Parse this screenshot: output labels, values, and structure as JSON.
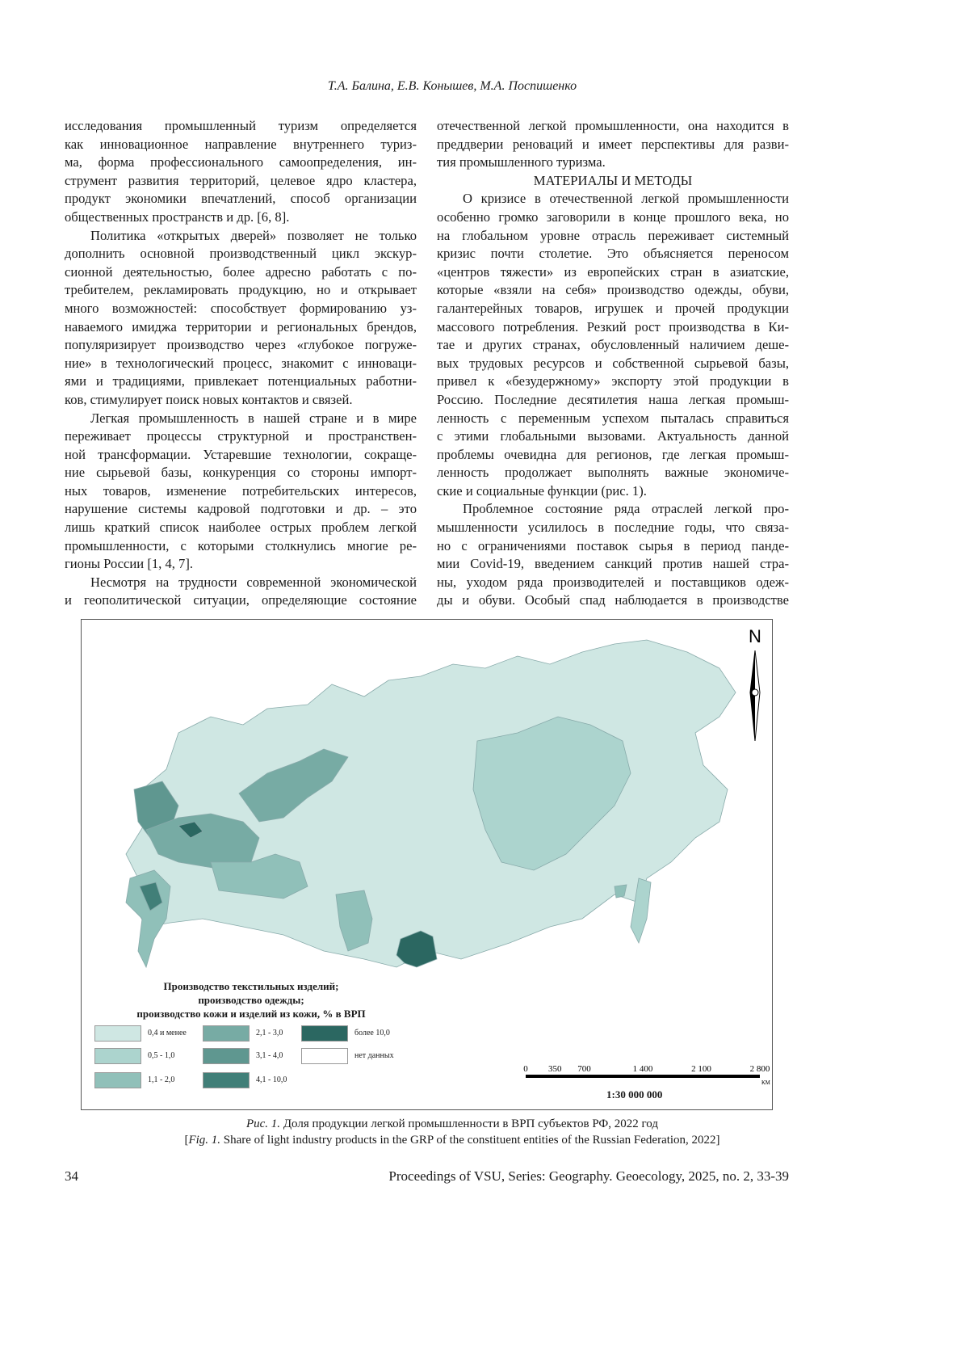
{
  "header": "Т.А. Балина, Е.В. Конышев, М.А. Поспишенко",
  "left_column": [
    {
      "t": "исследования промышленный туризм определяется"
    },
    {
      "t": "как инновационное направление внутреннего туриз-"
    },
    {
      "t": "ма, форма профессионального самоопределения, ин-"
    },
    {
      "t": "струмент развития территорий, целевое ядро кластера,"
    },
    {
      "t": "продукт экономики впечатлений, способ организации"
    },
    {
      "t": "общественных пространств и др. [6, 8].",
      "last": true
    },
    {
      "t": "Политика «открытых дверей» позволяет не только",
      "ind": true
    },
    {
      "t": "дополнить основной производственный цикл экскур-"
    },
    {
      "t": "сионной деятельностью, более адресно работать с по-"
    },
    {
      "t": "требителем, рекламировать продукцию, но и открывает"
    },
    {
      "t": "много возможностей: способствует формированию уз-"
    },
    {
      "t": "наваемого имиджа территории и региональных брендов,"
    },
    {
      "t": "популяризирует производство через «глубокое погруже-"
    },
    {
      "t": "ние» в технологический процесс, знакомит с инноваци-"
    },
    {
      "t": "ями и традициями, привлекает потенциальных работни-"
    },
    {
      "t": "ков, стимулирует поиск новых контактов и связей.",
      "last": true
    },
    {
      "t": "Легкая промышленность в нашей стране и в мире",
      "ind": true
    },
    {
      "t": "переживает процессы структурной и пространствен-"
    },
    {
      "t": "ной трансформации. Устаревшие технологии, сокраще-"
    },
    {
      "t": "ние сырьевой базы, конкуренция со стороны импорт-"
    },
    {
      "t": "ных товаров, изменение потребительских интересов,"
    },
    {
      "t": "нарушение системы кадровой подготовки и др. – это"
    },
    {
      "t": "лишь краткий список наиболее острых проблем легкой"
    },
    {
      "t": "промышленности, с которыми столкнулись многие ре-"
    },
    {
      "t": "гионы России [1, 4, 7].",
      "last": true
    },
    {
      "t": "Несмотря на трудности современной экономической",
      "ind": true
    },
    {
      "t": "и геополитической ситуации, определяющие состояние"
    }
  ],
  "right_column": [
    {
      "t": "отечественной легкой промышленности, она находится в"
    },
    {
      "t": "преддверии реноваций и имеет перспективы для разви-"
    },
    {
      "t": "тия промышленного туризма.",
      "last": true
    },
    {
      "t": "МАТЕРИАЛЫ И МЕТОДЫ",
      "center": true
    },
    {
      "t": "О кризисе в отечественной легкой промышленности",
      "ind": true
    },
    {
      "t": "особенно громко заговорили в конце прошлого века, но"
    },
    {
      "t": "на глобальном уровне отрасль переживает системный"
    },
    {
      "t": "кризис почти столетие. Это объясняется переносом"
    },
    {
      "t": "«центров тяжести» из европейских стран в азиатские,"
    },
    {
      "t": "которые «взяли на себя» производство одежды, обуви,"
    },
    {
      "t": "галантерейных товаров, игрушек и прочей продукции"
    },
    {
      "t": "массового потребления. Резкий рост производства в Ки-"
    },
    {
      "t": "тае и других странах, обусловленный наличием деше-"
    },
    {
      "t": "вых трудовых ресурсов и собственной сырьевой базы,"
    },
    {
      "t": "привел к «безудержному» экспорту этой продукции в"
    },
    {
      "t": "Россию. Последние десятилетия наша легкая промыш-"
    },
    {
      "t": "ленность с переменным успехом пыталась справиться"
    },
    {
      "t": "с этими глобальными вызовами. Актуальность данной"
    },
    {
      "t": "проблемы очевидна для регионов, где легкая промыш-"
    },
    {
      "t": "ленность продолжает выполнять важные экономиче-"
    },
    {
      "t": "ские и социальные функции (рис. 1).",
      "last": true
    },
    {
      "t": "Проблемное состояние ряда отраслей легкой про-",
      "ind": true
    },
    {
      "t": "мышленности усилилось в последние годы, что связа-"
    },
    {
      "t": "но с ограничениями поставок сырья в период панде-"
    },
    {
      "t": "мии Covid-19, введением санкций против нашей стра-"
    },
    {
      "t": "ны, уходом ряда производителей и поставщиков одеж-"
    },
    {
      "t": "ды и обуви. Особый спад наблюдается в производстве"
    }
  ],
  "figure": {
    "north_label": "N",
    "legend_title": [
      "Производство текстильных изделий;",
      "производство одежды;",
      "производство кожи и изделий из кожи, % в ВРП"
    ],
    "legend": [
      {
        "label": "0,4 и менее",
        "color": "#cfe7e3"
      },
      {
        "label": "0,5 - 1,0",
        "color": "#acd4ce"
      },
      {
        "label": "1,1 - 2,0",
        "color": "#90c0b9"
      },
      {
        "label": "2,1 - 3,0",
        "color": "#77aba4"
      },
      {
        "label": "3,1 - 4,0",
        "color": "#5f9790"
      },
      {
        "label": "4,1 - 10,0",
        "color": "#417f78"
      },
      {
        "label": "более 10,0",
        "color": "#2b6761"
      },
      {
        "label": "нет данных",
        "color": "#ffffff"
      }
    ],
    "scale_ticks": [
      "0",
      "350",
      "700",
      "1 400",
      "2 100",
      "2 800"
    ],
    "scale_unit": "КМ",
    "scale_ratio": "1:30 000 000"
  },
  "caption": {
    "ru_prefix": "Рис. 1.",
    "ru": " Доля продукции легкой промышленности в ВРП субъектов РФ, 2022 год",
    "en_open": "[",
    "en_prefix": "Fig. 1.",
    "en": " Share of light industry products in the GRP of the constituent entities of the Russian Federation, 2022]"
  },
  "footer": {
    "page_number": "34",
    "journal": "Proceedings of VSU, Series: Geography. Geoecology, 2025, no. 2, 33-39"
  }
}
